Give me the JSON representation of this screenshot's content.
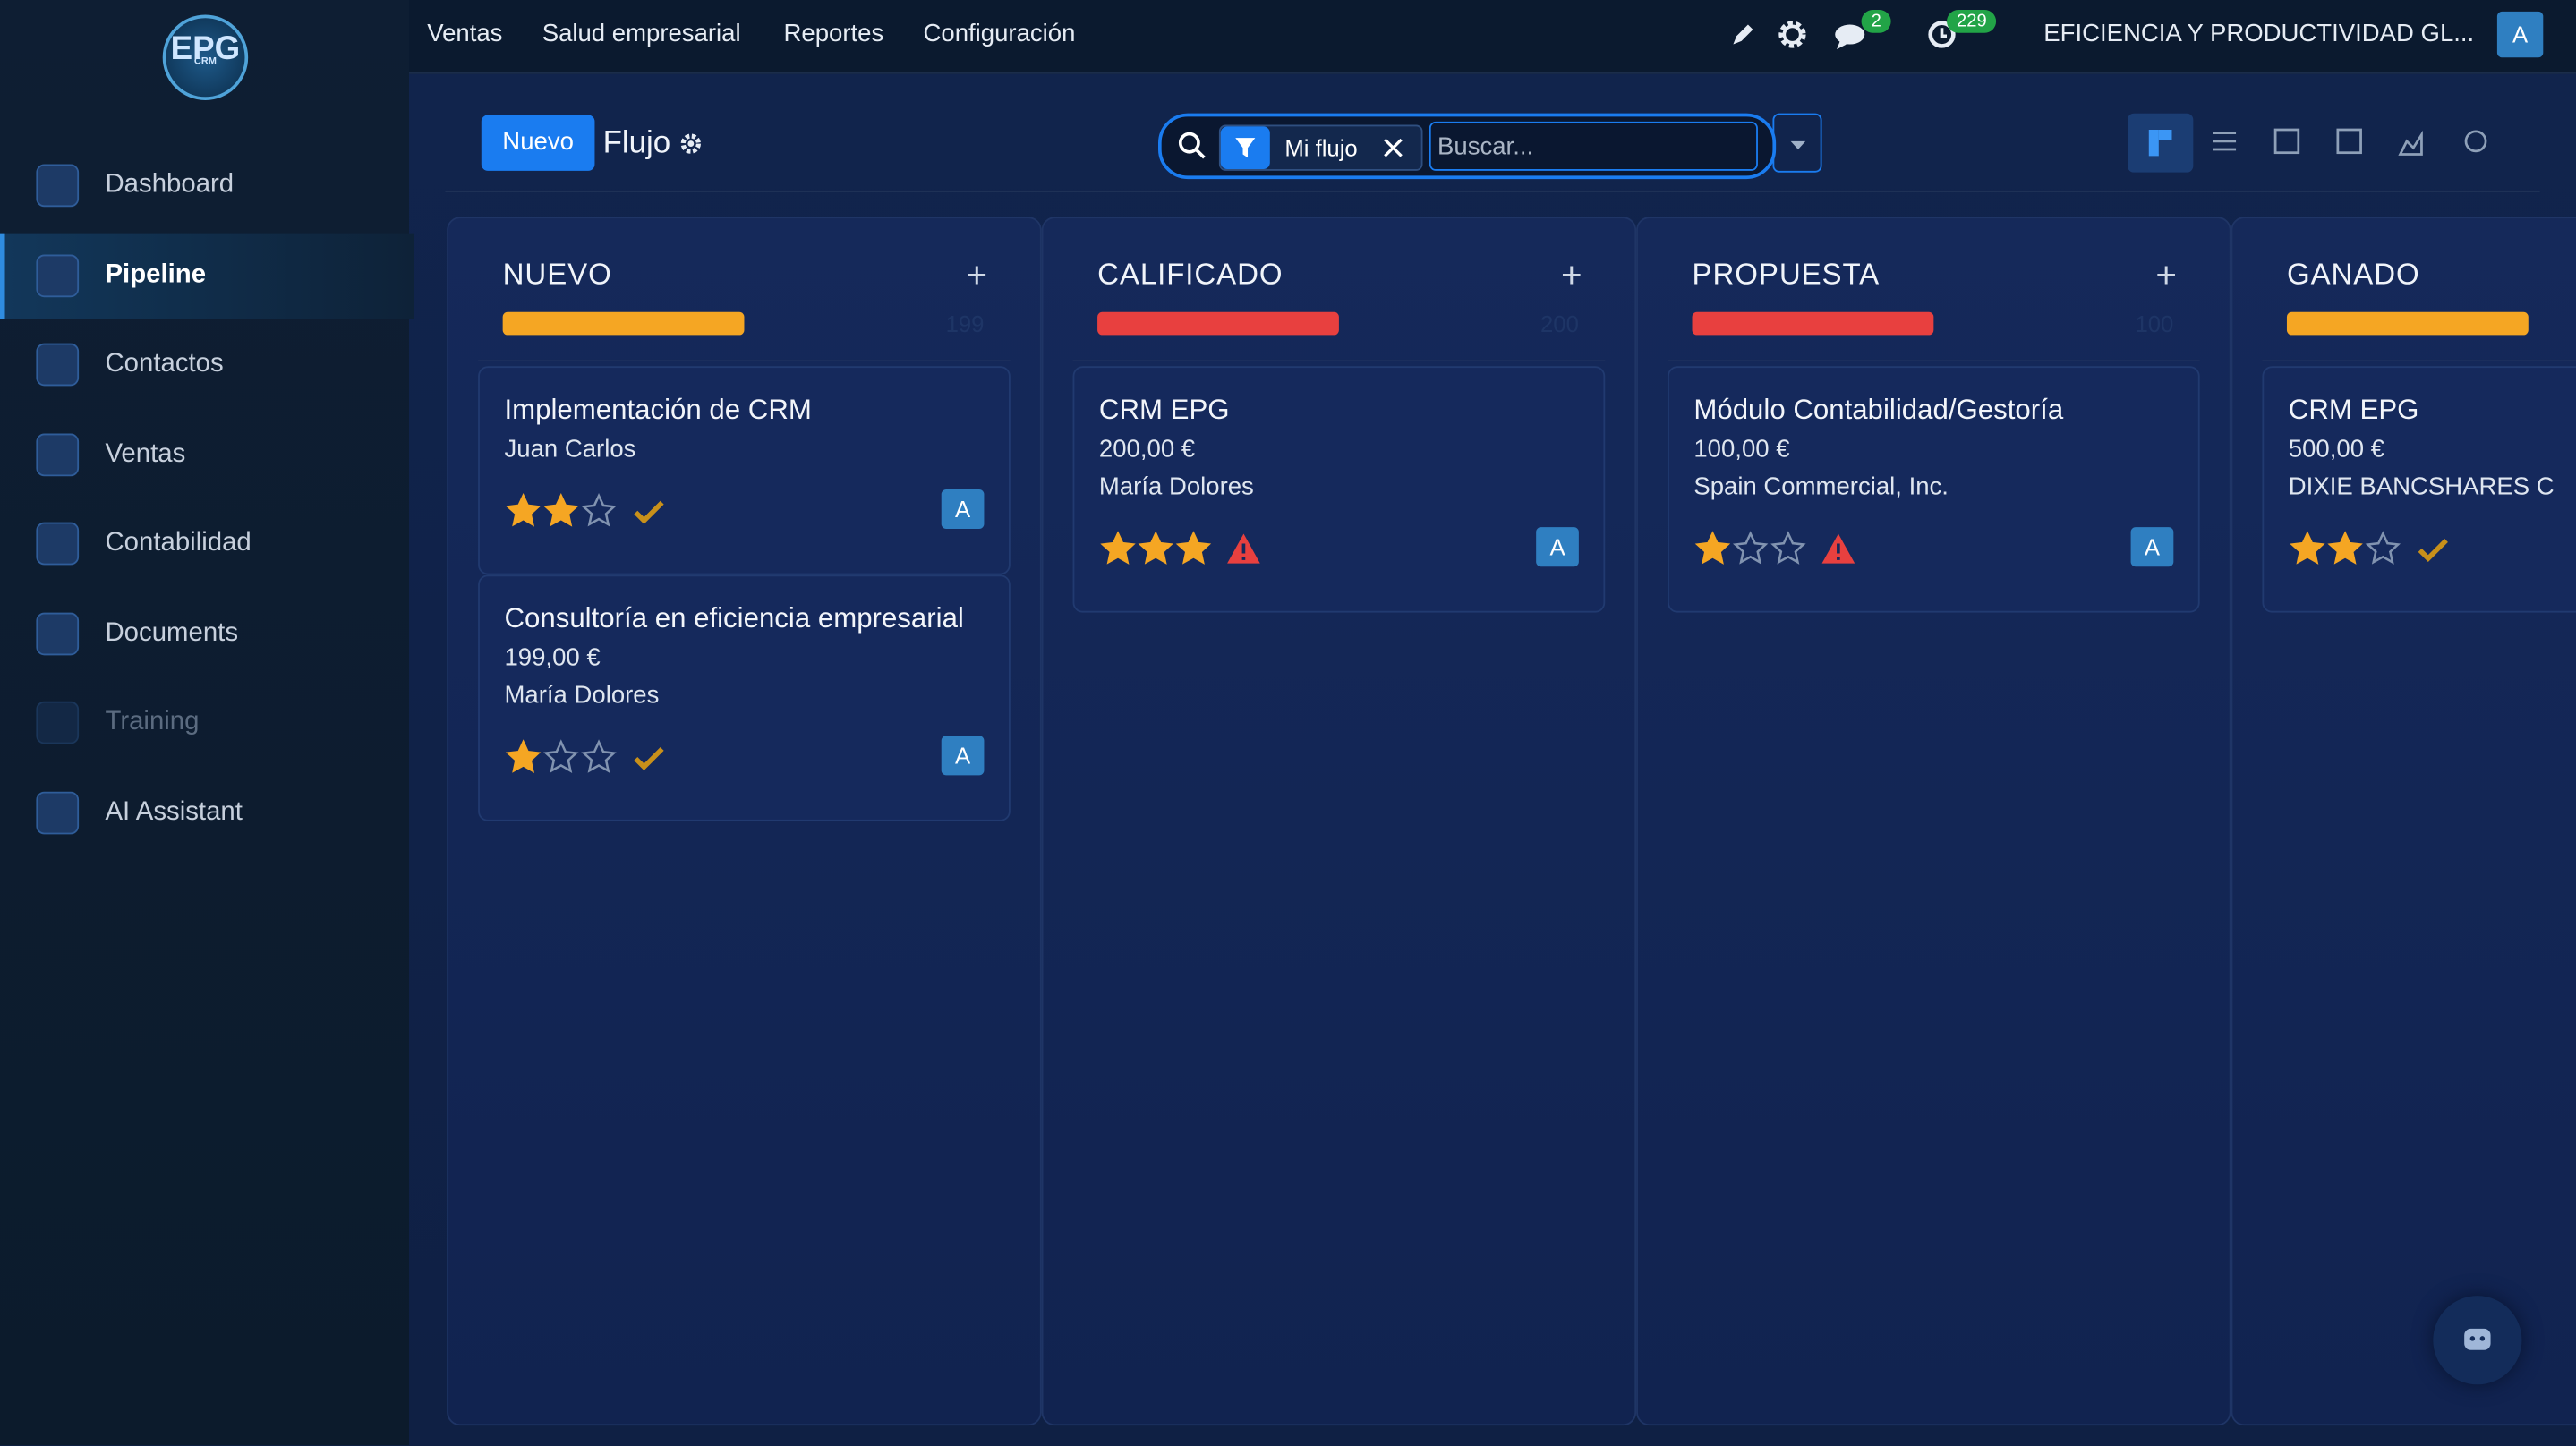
{
  "topnav": {
    "items": [
      "Ventas",
      "Salud empresarial",
      "Reportes",
      "Configuración"
    ],
    "chat_badge": "2",
    "activity_badge": "229",
    "company": "EFICIENCIA Y PRODUCTIVIDAD GL...",
    "avatar": "A"
  },
  "logo": {
    "text": "EPG",
    "sub": "CRM"
  },
  "sidebar": {
    "items": [
      {
        "label": "Dashboard"
      },
      {
        "label": "Pipeline",
        "active": true
      },
      {
        "label": "Contactos"
      },
      {
        "label": "Ventas"
      },
      {
        "label": "Contabilidad"
      },
      {
        "label": "Documents"
      },
      {
        "label": "Training",
        "disabled": true
      },
      {
        "label": "AI Assistant"
      }
    ]
  },
  "toolbar": {
    "new_button": "Nuevo",
    "title": "Flujo",
    "filter": "Mi flujo",
    "search_placeholder": "Buscar..."
  },
  "columns": [
    {
      "title": "NUEVO",
      "bar_color": "#f5a623",
      "total": "199",
      "cards": [
        {
          "title": "Implementación de CRM",
          "lines": [
            "Juan Carlos"
          ],
          "rating": 2,
          "status": "done",
          "avatar": "A"
        },
        {
          "title": "Consultoría en eficiencia empresarial",
          "lines": [
            "199,00 €",
            "María Dolores"
          ],
          "rating": 1,
          "status": "done",
          "avatar": "A"
        }
      ]
    },
    {
      "title": "CALIFICADO",
      "bar_color": "#e8403f",
      "total": "200",
      "cards": [
        {
          "title": "CRM EPG",
          "lines": [
            "200,00 €",
            "María Dolores"
          ],
          "rating": 3,
          "status": "warning",
          "avatar": "A"
        }
      ]
    },
    {
      "title": "PROPUESTA",
      "bar_color": "#e8403f",
      "total": "100",
      "cards": [
        {
          "title": "Módulo Contabilidad/Gestoría",
          "lines": [
            "100,00 €",
            "Spain Commercial, Inc."
          ],
          "rating": 1,
          "status": "warning",
          "avatar": "A"
        }
      ]
    },
    {
      "title": "GANADO",
      "bar_color": "#f5a623",
      "cards": [
        {
          "title": "CRM EPG",
          "lines": [
            "500,00 €",
            "DIXIE BANCSHARES C"
          ],
          "rating": 2,
          "status": "done"
        }
      ]
    }
  ]
}
